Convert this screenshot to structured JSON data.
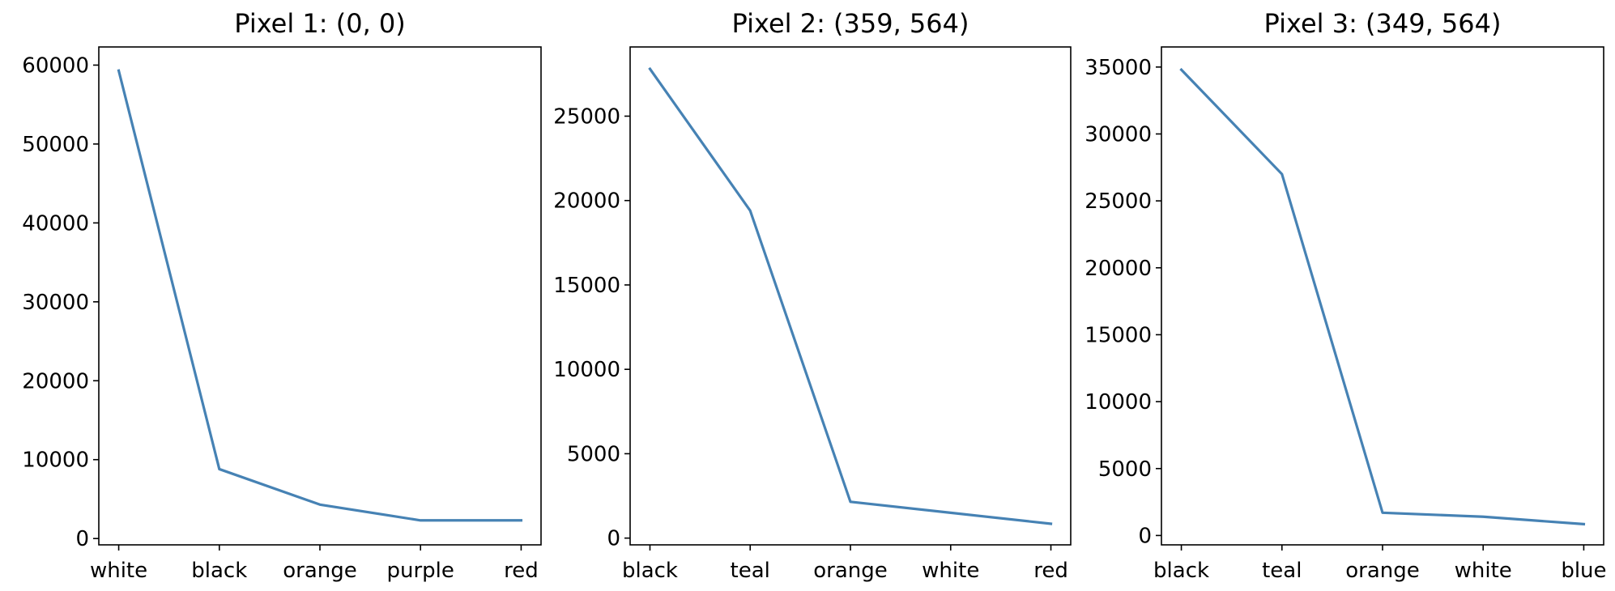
{
  "chart_data": [
    {
      "type": "line",
      "title": "Pixel 1: (0, 0)",
      "categories": [
        "white",
        "black",
        "orange",
        "purple",
        "red"
      ],
      "values": [
        59300,
        8800,
        4300,
        2300,
        2300
      ],
      "ylim": [
        -800,
        62300
      ],
      "yticks": [
        0,
        10000,
        20000,
        30000,
        40000,
        50000,
        60000
      ],
      "ytick_labels": [
        "0",
        "10000",
        "20000",
        "30000",
        "40000",
        "50000",
        "60000"
      ],
      "color": "#4682b4",
      "grid": false
    },
    {
      "type": "line",
      "title": "Pixel 2: (359, 564)",
      "categories": [
        "black",
        "teal",
        "orange",
        "white",
        "red"
      ],
      "values": [
        27800,
        19400,
        2150,
        1500,
        850
      ],
      "ylim": [
        -400,
        29100
      ],
      "yticks": [
        0,
        5000,
        10000,
        15000,
        20000,
        25000
      ],
      "ytick_labels": [
        "0",
        "5000",
        "10000",
        "15000",
        "20000",
        "25000"
      ],
      "color": "#4682b4",
      "grid": false
    },
    {
      "type": "line",
      "title": "Pixel 3: (349, 564)",
      "categories": [
        "black",
        "teal",
        "orange",
        "white",
        "blue"
      ],
      "values": [
        34800,
        27000,
        1700,
        1400,
        850
      ],
      "ylim": [
        -700,
        36500
      ],
      "yticks": [
        0,
        5000,
        10000,
        15000,
        20000,
        25000,
        30000,
        35000
      ],
      "ytick_labels": [
        "0",
        "5000",
        "10000",
        "15000",
        "20000",
        "25000",
        "30000",
        "35000"
      ],
      "color": "#4682b4",
      "grid": false
    }
  ]
}
